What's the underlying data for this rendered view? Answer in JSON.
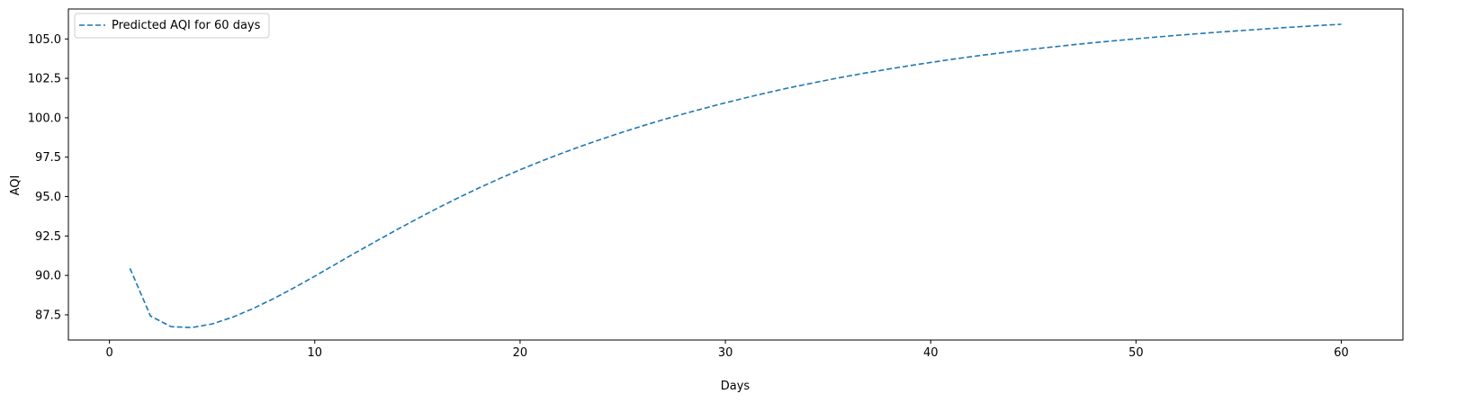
{
  "chart_data": {
    "type": "line",
    "title": "",
    "xlabel": "Days",
    "ylabel": "AQI",
    "xlim": [
      -2,
      63
    ],
    "ylim": [
      85.9,
      106.9
    ],
    "xticks": [
      0,
      10,
      20,
      30,
      40,
      50,
      60
    ],
    "yticks": [
      87.5,
      90.0,
      92.5,
      95.0,
      97.5,
      100.0,
      102.5,
      105.0
    ],
    "x_tick_labels": [
      "0",
      "10",
      "20",
      "30",
      "40",
      "50",
      "60"
    ],
    "y_tick_labels": [
      "87.5",
      "90.0",
      "92.5",
      "95.0",
      "97.5",
      "100.0",
      "102.5",
      "105.0"
    ],
    "grid": false,
    "legend_position": "top-left",
    "series": [
      {
        "name": "Predicted AQI for 60 days",
        "color": "#1f77b4",
        "line_style": "dashed",
        "x": [
          1,
          2,
          3,
          4,
          5,
          6,
          7,
          8,
          9,
          10,
          11,
          12,
          13,
          14,
          15,
          16,
          17,
          18,
          19,
          20,
          21,
          22,
          23,
          24,
          25,
          26,
          27,
          28,
          29,
          30,
          31,
          32,
          33,
          34,
          35,
          36,
          37,
          38,
          39,
          40,
          41,
          42,
          43,
          44,
          45,
          46,
          47,
          48,
          49,
          50,
          51,
          52,
          53,
          54,
          55,
          56,
          57,
          58,
          59,
          60
        ],
        "values": [
          90.45,
          87.42,
          86.75,
          86.69,
          86.92,
          87.35,
          87.9,
          88.53,
          89.22,
          89.95,
          90.7,
          91.45,
          92.18,
          92.9,
          93.6,
          94.28,
          94.93,
          95.55,
          96.14,
          96.7,
          97.23,
          97.73,
          98.21,
          98.66,
          99.09,
          99.5,
          99.89,
          100.26,
          100.61,
          100.95,
          101.27,
          101.58,
          101.87,
          102.14,
          102.4,
          102.65,
          102.88,
          103.1,
          103.31,
          103.51,
          103.7,
          103.88,
          104.05,
          104.21,
          104.36,
          104.5,
          104.64,
          104.77,
          104.89,
          105.01,
          105.12,
          105.23,
          105.33,
          105.43,
          105.52,
          105.61,
          105.7,
          105.78,
          105.86,
          105.93
        ]
      }
    ]
  }
}
